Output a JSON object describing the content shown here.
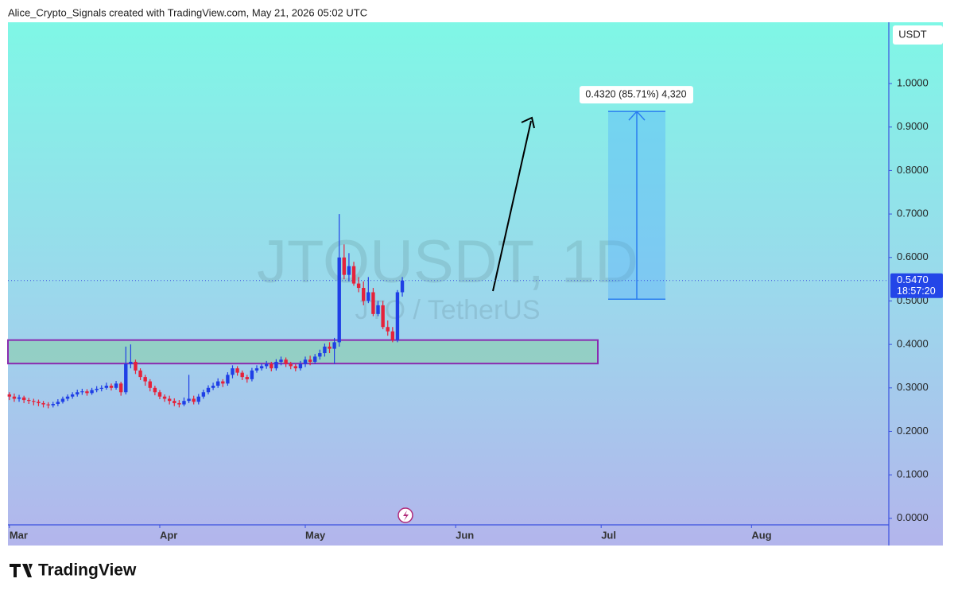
{
  "chart_data": {
    "type": "candlestick",
    "header": "Alice_Crypto_Signals created with TradingView.com, May 21, 2026 05:02 UTC",
    "watermark_symbol": "JTOUSDT, 1D",
    "watermark_name": "JTO / TetherUS",
    "currency": "USDT",
    "brand": "TradingView",
    "xlim": [
      -0.3,
      181.3
    ],
    "xticks": [
      {
        "value": 0,
        "label": "Mar"
      },
      {
        "value": 31,
        "label": "Apr"
      },
      {
        "value": 61,
        "label": "May"
      },
      {
        "value": 92,
        "label": "Jun"
      },
      {
        "value": 122,
        "label": "Jul"
      },
      {
        "value": 153,
        "label": "Aug"
      }
    ],
    "ylim": [
      -0.015,
      1.141
    ],
    "yticks": [
      {
        "value": 0,
        "label": "0.0000"
      },
      {
        "value": 0.1,
        "label": "0.1000"
      },
      {
        "value": 0.2,
        "label": "0.2000"
      },
      {
        "value": 0.3,
        "label": "0.3000"
      },
      {
        "value": 0.4,
        "label": "0.4000"
      },
      {
        "value": 0.5,
        "label": "0.5000"
      },
      {
        "value": 0.6,
        "label": "0.6000"
      },
      {
        "value": 0.7,
        "label": "0.7000"
      },
      {
        "value": 0.8,
        "label": "0.8000"
      },
      {
        "value": 0.9,
        "label": "0.9000"
      },
      {
        "value": 1.0,
        "label": "1.0000"
      }
    ],
    "up_color": "#1f3fe6",
    "down_color": "#e5223a",
    "open": [
      0.285,
      0.28,
      0.275,
      0.278,
      0.272,
      0.27,
      0.268,
      0.265,
      0.262,
      0.26,
      0.263,
      0.268,
      0.275,
      0.28,
      0.285,
      0.29,
      0.292,
      0.288,
      0.295,
      0.298,
      0.3,
      0.305,
      0.3,
      0.31,
      0.29,
      0.355,
      0.36,
      0.34,
      0.325,
      0.315,
      0.3,
      0.29,
      0.28,
      0.275,
      0.27,
      0.265,
      0.262,
      0.27,
      0.275,
      0.268,
      0.28,
      0.29,
      0.3,
      0.305,
      0.315,
      0.31,
      0.33,
      0.345,
      0.335,
      0.325,
      0.32,
      0.34,
      0.345,
      0.35,
      0.355,
      0.345,
      0.36,
      0.365,
      0.355,
      0.35,
      0.345,
      0.355,
      0.365,
      0.36,
      0.372,
      0.38,
      0.395,
      0.39,
      0.405,
      0.6,
      0.56,
      0.58,
      0.54,
      0.53,
      0.5,
      0.52,
      0.47,
      0.49,
      0.44,
      0.43,
      0.41,
      0.52
    ],
    "high": [
      0.29,
      0.287,
      0.284,
      0.282,
      0.277,
      0.275,
      0.273,
      0.27,
      0.267,
      0.268,
      0.274,
      0.28,
      0.285,
      0.29,
      0.296,
      0.298,
      0.297,
      0.3,
      0.304,
      0.306,
      0.312,
      0.31,
      0.316,
      0.314,
      0.395,
      0.4,
      0.365,
      0.345,
      0.33,
      0.32,
      0.305,
      0.295,
      0.285,
      0.282,
      0.276,
      0.272,
      0.278,
      0.33,
      0.282,
      0.286,
      0.296,
      0.306,
      0.312,
      0.322,
      0.32,
      0.336,
      0.352,
      0.35,
      0.34,
      0.33,
      0.346,
      0.352,
      0.356,
      0.362,
      0.36,
      0.366,
      0.372,
      0.37,
      0.36,
      0.355,
      0.362,
      0.372,
      0.374,
      0.378,
      0.388,
      0.402,
      0.405,
      0.415,
      0.7,
      0.63,
      0.61,
      0.59,
      0.555,
      0.545,
      0.555,
      0.53,
      0.5,
      0.5,
      0.455,
      0.44,
      0.525,
      0.555
    ],
    "low": [
      0.272,
      0.268,
      0.268,
      0.265,
      0.263,
      0.26,
      0.258,
      0.255,
      0.253,
      0.255,
      0.258,
      0.264,
      0.27,
      0.275,
      0.28,
      0.284,
      0.282,
      0.284,
      0.29,
      0.292,
      0.296,
      0.294,
      0.296,
      0.282,
      0.285,
      0.345,
      0.332,
      0.318,
      0.305,
      0.292,
      0.283,
      0.274,
      0.268,
      0.262,
      0.258,
      0.255,
      0.258,
      0.265,
      0.262,
      0.262,
      0.275,
      0.285,
      0.295,
      0.3,
      0.302,
      0.305,
      0.322,
      0.328,
      0.318,
      0.312,
      0.315,
      0.335,
      0.34,
      0.344,
      0.338,
      0.34,
      0.352,
      0.348,
      0.343,
      0.338,
      0.34,
      0.348,
      0.352,
      0.355,
      0.365,
      0.372,
      0.38,
      0.355,
      0.395,
      0.55,
      0.545,
      0.535,
      0.52,
      0.49,
      0.495,
      0.465,
      0.465,
      0.435,
      0.42,
      0.405,
      0.405,
      0.51
    ],
    "close": [
      0.28,
      0.275,
      0.278,
      0.272,
      0.27,
      0.268,
      0.265,
      0.262,
      0.26,
      0.263,
      0.268,
      0.275,
      0.28,
      0.285,
      0.29,
      0.292,
      0.288,
      0.295,
      0.298,
      0.3,
      0.305,
      0.3,
      0.31,
      0.29,
      0.355,
      0.36,
      0.34,
      0.325,
      0.315,
      0.3,
      0.29,
      0.28,
      0.275,
      0.27,
      0.265,
      0.262,
      0.27,
      0.275,
      0.268,
      0.28,
      0.29,
      0.3,
      0.305,
      0.315,
      0.31,
      0.33,
      0.345,
      0.335,
      0.325,
      0.32,
      0.34,
      0.345,
      0.35,
      0.355,
      0.345,
      0.36,
      0.365,
      0.355,
      0.35,
      0.345,
      0.355,
      0.365,
      0.36,
      0.372,
      0.38,
      0.395,
      0.39,
      0.405,
      0.6,
      0.56,
      0.58,
      0.54,
      0.53,
      0.5,
      0.52,
      0.47,
      0.49,
      0.44,
      0.43,
      0.41,
      0.52,
      0.547
    ],
    "last_price": 0.547,
    "last_price_label": "0.5470",
    "countdown": "18:57:20",
    "support_zone": {
      "low": 0.356,
      "high": 0.41
    },
    "target": {
      "from": 0.504,
      "to": 0.936,
      "label": "0.4320 (85.71%) 4,320"
    }
  }
}
